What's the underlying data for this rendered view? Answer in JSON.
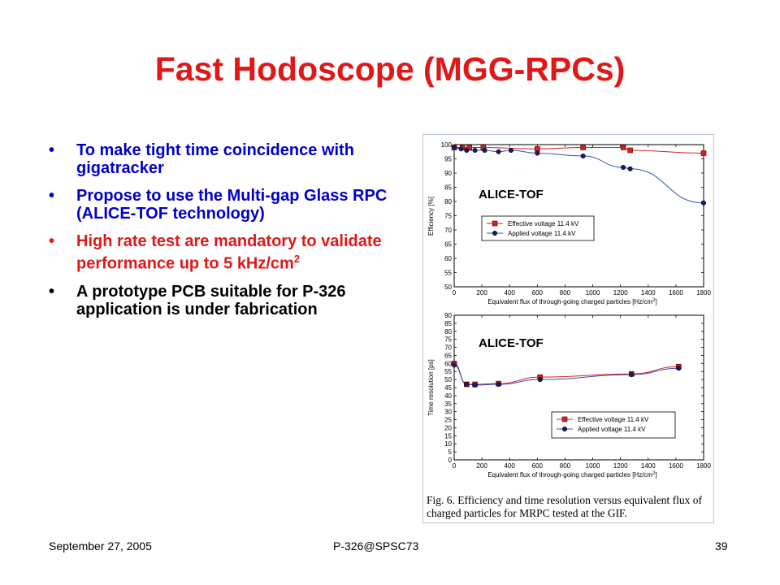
{
  "slide": {
    "title": "Fast Hodoscope (MGG-RPCs)",
    "title_color": "#e01818",
    "bullets": [
      {
        "text": "To make tight time coincidence with gigatracker",
        "color": "#0000cc"
      },
      {
        "text": "Propose to use the Multi-gap Glass RPC (ALICE-TOF technology)",
        "color": "#0000cc"
      },
      {
        "text": "High rate test are mandatory to validate performance up to 5 kHz/cm",
        "sup": "2",
        "color": "#e01818"
      },
      {
        "text": "A prototype PCB suitable for P-326 application is under fabrication",
        "color": "#000000"
      }
    ],
    "bullet_symbol": "•"
  },
  "figure": {
    "caption": "Fig. 6.  Efficiency and time resolution versus equivalent flux of charged particles for MRPC tested at the GIF."
  },
  "chart_data": [
    {
      "type": "scatter",
      "overlay_label": "ALICE-TOF",
      "xlabel": "Equivalent flux of through-going charged particles [Hz/cm",
      "xlabel_sup": "2",
      "xlabel_end": "]",
      "ylabel": "Efficiency [%]",
      "xlim": [
        0,
        1800
      ],
      "ylim": [
        50,
        100
      ],
      "x_ticks": [
        0,
        200,
        400,
        600,
        800,
        1000,
        1200,
        1400,
        1600,
        1800
      ],
      "y_ticks": [
        50,
        55,
        60,
        65,
        70,
        75,
        80,
        85,
        90,
        95,
        100
      ],
      "legend_position": "lower-left",
      "series": [
        {
          "name": "Effective voltage 11.4 kV",
          "marker": "square",
          "marker_color": "#d42020",
          "line_color": "#d42020",
          "x": [
            0,
            60,
            110,
            210,
            600,
            930,
            1220,
            1270,
            1800
          ],
          "y": [
            99,
            99,
            99,
            99,
            98.5,
            99,
            99,
            98,
            97
          ]
        },
        {
          "name": "Applied voltage 11.4 kV",
          "marker": "circle",
          "marker_color": "#1a1a6e",
          "line_color": "#3050b0",
          "x": [
            0,
            50,
            90,
            150,
            220,
            320,
            410,
            600,
            930,
            1220,
            1270,
            1800
          ],
          "y": [
            99,
            98.5,
            98,
            98,
            98,
            97.5,
            98,
            97,
            96,
            92,
            91.5,
            79.5
          ]
        }
      ]
    },
    {
      "type": "scatter",
      "overlay_label": "ALICE-TOF",
      "xlabel": "Equivalent flux of through-going charged particles [Hz/cm",
      "xlabel_sup": "2",
      "xlabel_end": "]",
      "ylabel": "Time resolution [ps]",
      "xlim": [
        0,
        1800
      ],
      "ylim": [
        0,
        90
      ],
      "x_ticks": [
        0,
        200,
        400,
        600,
        800,
        1000,
        1200,
        1400,
        1600,
        1800
      ],
      "y_ticks": [
        0,
        5,
        10,
        15,
        20,
        25,
        30,
        35,
        40,
        45,
        50,
        55,
        60,
        65,
        70,
        75,
        80,
        85,
        90
      ],
      "legend_position": "lower-right",
      "series": [
        {
          "name": "Effective voltage 11.4 kV",
          "marker": "square",
          "marker_color": "#d42020",
          "line_color": "#d42020",
          "x": [
            0,
            90,
            150,
            320,
            620,
            1280,
            1620
          ],
          "y": [
            60,
            47,
            47,
            47.5,
            51.5,
            53.5,
            58
          ]
        },
        {
          "name": "Applied voltage 11.4 kV",
          "marker": "circle",
          "marker_color": "#1a1a6e",
          "line_color": "#3050b0",
          "x": [
            0,
            90,
            150,
            320,
            620,
            1280,
            1620
          ],
          "y": [
            59,
            47,
            46.5,
            47,
            50,
            53,
            57
          ]
        }
      ]
    }
  ],
  "footer": {
    "date": "September 27, 2005",
    "center": "P-326@SPSC73",
    "page": "39"
  }
}
